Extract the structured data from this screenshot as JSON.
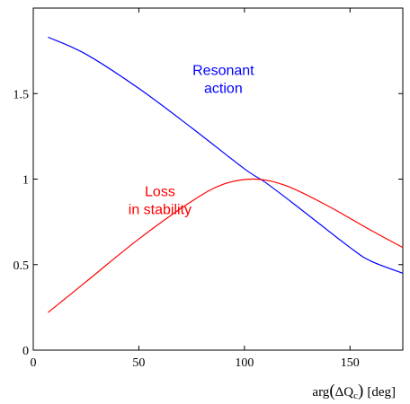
{
  "chart_data": {
    "type": "line",
    "title": "",
    "xlabel": {
      "prefix": "arg",
      "delta_symbol": "ΔQ",
      "subscript": "c",
      "unit": "[deg]"
    },
    "ylabel": "",
    "xlim": [
      0,
      175
    ],
    "ylim": [
      0,
      2
    ],
    "x_ticks": [
      0,
      50,
      100,
      150
    ],
    "x_tick_labels": [
      "0",
      "50",
      "100",
      "150"
    ],
    "y_ticks": [
      0,
      0.5,
      1,
      1.5
    ],
    "y_tick_labels": [
      "0",
      "0.5",
      "1",
      "1.5"
    ],
    "grid": false,
    "series": [
      {
        "key": "resonant",
        "color": "#0000ff",
        "x": [
          7,
          25,
          50,
          75,
          100,
          110,
          125,
          150,
          160,
          175
        ],
        "y": [
          1.83,
          1.73,
          1.53,
          1.3,
          1.06,
          0.98,
          0.84,
          0.6,
          0.52,
          0.45
        ]
      },
      {
        "key": "loss",
        "color": "#ff0000",
        "x": [
          7,
          25,
          50,
          75,
          90,
          105,
          120,
          140,
          160,
          175
        ],
        "y": [
          0.22,
          0.4,
          0.65,
          0.87,
          0.97,
          1.0,
          0.96,
          0.84,
          0.7,
          0.6
        ]
      }
    ],
    "annotations": [
      {
        "key": "resonant",
        "lines": [
          "Resonant",
          "action"
        ],
        "color": "#0000ff",
        "anchor": [
          90,
          1.61
        ]
      },
      {
        "key": "loss",
        "lines": [
          "Loss",
          "in stability"
        ],
        "color": "#ff0000",
        "anchor": [
          60,
          0.9
        ]
      }
    ]
  }
}
